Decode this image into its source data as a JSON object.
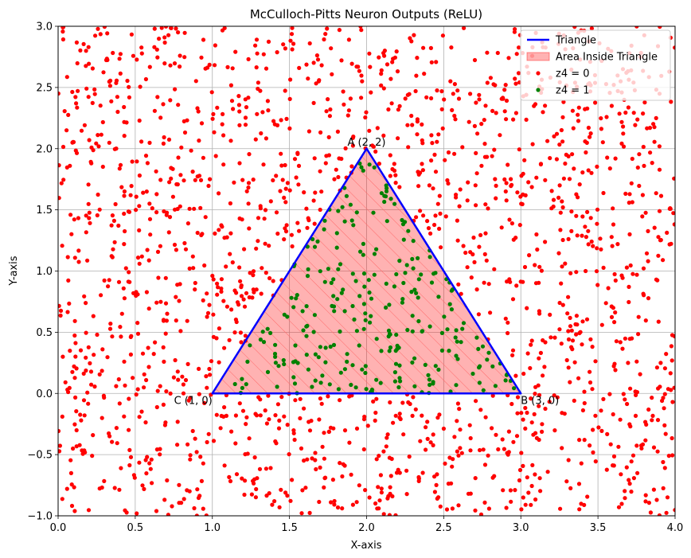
{
  "chart_data": {
    "type": "scatter",
    "title": "McCulloch-Pitts Neuron Outputs (ReLU)",
    "xlabel": "X-axis",
    "ylabel": "Y-axis",
    "xlim": [
      0.0,
      4.0
    ],
    "ylim": [
      -1.0,
      3.0
    ],
    "grid": true,
    "legend_position": "top-right",
    "x_ticks": [
      "0.0",
      "0.5",
      "1.0",
      "1.5",
      "2.0",
      "2.5",
      "3.0",
      "3.5",
      "4.0"
    ],
    "y_ticks": [
      "−1.0",
      "−0.5",
      "0.0",
      "0.5",
      "1.0",
      "1.5",
      "2.0",
      "2.5",
      "3.0"
    ],
    "x_tick_values": [
      0.0,
      0.5,
      1.0,
      1.5,
      2.0,
      2.5,
      3.0,
      3.5,
      4.0
    ],
    "y_tick_values": [
      -1.0,
      -0.5,
      0.0,
      0.5,
      1.0,
      1.5,
      2.0,
      2.5,
      3.0
    ],
    "triangle": {
      "vertices": [
        {
          "label": "A (2, 2)",
          "x": 2,
          "y": 2
        },
        {
          "label": "B (3, 0)",
          "x": 3,
          "y": 0
        },
        {
          "label": "C (1, 0)",
          "x": 1,
          "y": 0
        }
      ],
      "line_color": "#0000ff",
      "fill_color": "#ff0000",
      "fill_alpha": 0.3
    },
    "scatter": {
      "total_points": 2000,
      "seed": 7,
      "outside_color": "#ff0000",
      "inside_color": "#008000"
    },
    "legend": [
      {
        "label": "Triangle",
        "kind": "line",
        "color": "#0000ff"
      },
      {
        "label": "Area Inside Triangle",
        "kind": "patch",
        "color": "#ff0000"
      },
      {
        "label": "z4 = 0",
        "kind": "dot",
        "color": "#ff0000"
      },
      {
        "label": "z4 = 1",
        "kind": "dot",
        "color": "#008000"
      }
    ]
  }
}
